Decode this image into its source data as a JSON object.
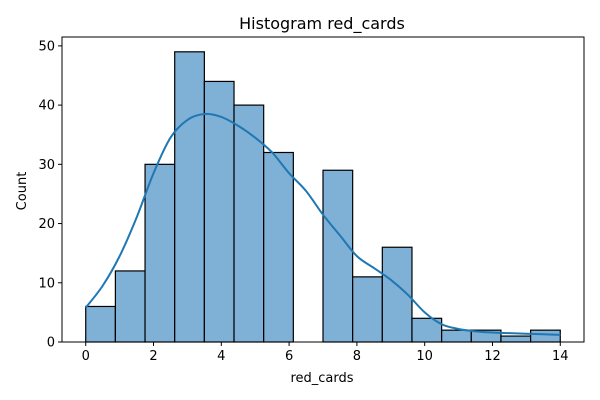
{
  "chart_data": {
    "type": "bar",
    "title": "Histogram red_cards",
    "xlabel": "red_cards",
    "ylabel": "Count",
    "xlim": [
      -0.7,
      14.7
    ],
    "ylim": [
      0,
      51.5
    ],
    "xticks": [
      0,
      2,
      4,
      6,
      8,
      10,
      12,
      14
    ],
    "yticks": [
      0,
      10,
      20,
      30,
      40,
      50
    ],
    "bar_color": "#7fb0d5",
    "bar_edge_color": "#000000",
    "kde_color": "#1f77b4",
    "grid": false,
    "bins": [
      {
        "x0": 0.0,
        "x1": 0.875,
        "count": 6
      },
      {
        "x0": 0.875,
        "x1": 1.75,
        "count": 12
      },
      {
        "x0": 1.75,
        "x1": 2.625,
        "count": 30
      },
      {
        "x0": 2.625,
        "x1": 3.5,
        "count": 49
      },
      {
        "x0": 3.5,
        "x1": 4.375,
        "count": 44
      },
      {
        "x0": 4.375,
        "x1": 5.25,
        "count": 40
      },
      {
        "x0": 5.25,
        "x1": 6.125,
        "count": 32
      },
      {
        "x0": 6.125,
        "x1": 7.0,
        "count": 0
      },
      {
        "x0": 7.0,
        "x1": 7.875,
        "count": 29
      },
      {
        "x0": 7.875,
        "x1": 8.75,
        "count": 11
      },
      {
        "x0": 8.75,
        "x1": 9.625,
        "count": 16
      },
      {
        "x0": 9.625,
        "x1": 10.5,
        "count": 4
      },
      {
        "x0": 10.5,
        "x1": 11.375,
        "count": 2
      },
      {
        "x0": 11.375,
        "x1": 12.25,
        "count": 2
      },
      {
        "x0": 12.25,
        "x1": 13.125,
        "count": 1
      },
      {
        "x0": 13.125,
        "x1": 14.0,
        "count": 2
      }
    ],
    "kde": {
      "x": [
        0,
        0.5,
        1,
        1.5,
        2,
        2.5,
        3,
        3.5,
        4,
        4.5,
        5,
        5.5,
        6,
        6.5,
        7,
        7.5,
        8,
        8.5,
        9,
        9.5,
        10,
        10.5,
        11,
        11.5,
        12,
        12.5,
        13,
        13.5,
        14
      ],
      "y": [
        5.8,
        9.5,
        14.5,
        21.0,
        28.5,
        34.5,
        37.5,
        38.5,
        38.0,
        36.5,
        34.5,
        32.0,
        28.5,
        25.5,
        21.5,
        18.0,
        14.5,
        12.5,
        10.5,
        8.0,
        5.0,
        3.0,
        2.2,
        1.8,
        1.6,
        1.5,
        1.4,
        1.3,
        1.2
      ]
    }
  }
}
